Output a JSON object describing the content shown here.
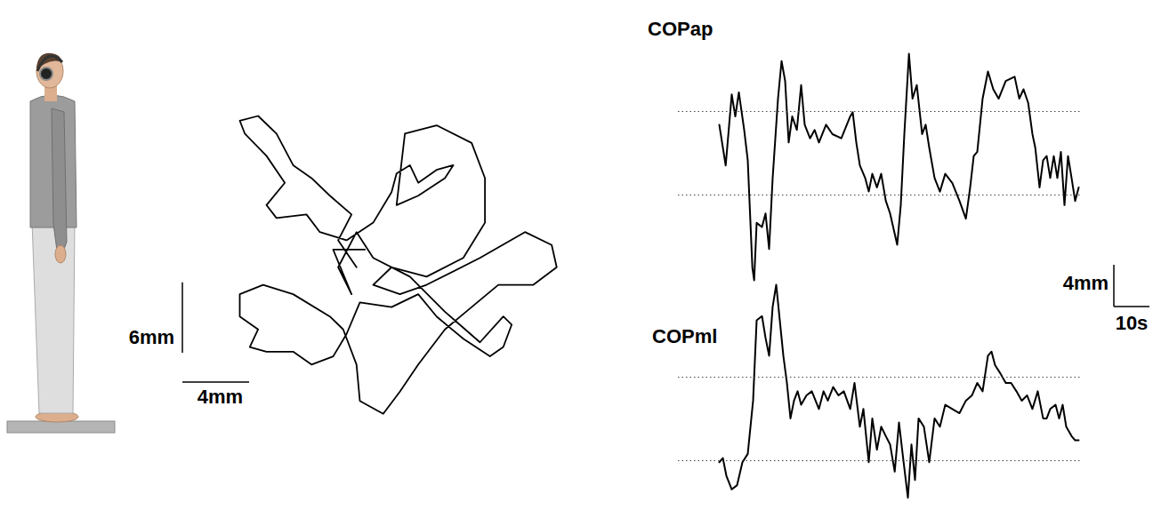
{
  "chart_data": [
    {
      "type": "path",
      "color": "#000000",
      "tick_labels": false,
      "x": [
        -2.1,
        -3.2,
        -2.4,
        -3.7,
        -4.8,
        -5.9,
        -6.9,
        -8.0,
        -9.1,
        -8.8,
        -7.5,
        -6.4,
        -7.5,
        -6.9,
        -5.1,
        -4.3,
        -2.7,
        -1.1,
        0.0,
        0.3,
        1.1,
        1.6,
        2.7,
        3.7,
        3.2,
        1.6,
        0.3,
        0.8,
        2.7,
        4.8,
        5.6,
        5.6,
        4.3,
        2.1,
        0.0,
        -1.1,
        0.5,
        2.1,
        5.3,
        8.0,
        9.6,
        9.9,
        8.5,
        6.4,
        4.8,
        3.2,
        1.6,
        0.5,
        -0.5,
        -1.9,
        -2.1,
        -2.9,
        -3.7,
        -5.9,
        -7.7,
        -9.1,
        -9.1,
        -8.0,
        -8.5,
        -7.5,
        -5.9,
        -4.8,
        -3.5,
        -2.7,
        -1.9,
        0.0,
        1.6,
        2.7,
        4.3,
        5.9,
        6.7,
        7.2,
        6.7,
        5.3,
        3.2,
        1.1,
        -1.1,
        -2.1,
        -3.2,
        -2.4,
        -3.5,
        -1.6
      ],
      "y": [
        0.0,
        2.3,
        4.5,
        6.1,
        7.6,
        8.7,
        11.4,
        12.9,
        12.5,
        11.4,
        9.5,
        7.2,
        5.3,
        4.2,
        4.5,
        3.0,
        2.3,
        3.8,
        6.4,
        8.0,
        8.7,
        7.2,
        8.3,
        8.7,
        7.6,
        6.1,
        5.3,
        11.4,
        12.1,
        10.6,
        7.6,
        3.8,
        0.8,
        -0.8,
        0.0,
        -1.5,
        -2.3,
        -1.5,
        0.8,
        3.0,
        1.9,
        0.0,
        -1.5,
        -1.5,
        -3.4,
        -5.3,
        -8.3,
        -10.6,
        -12.5,
        -11.4,
        -8.3,
        -5.3,
        -4.2,
        -2.3,
        -1.5,
        -2.3,
        -4.2,
        -5.3,
        -6.8,
        -7.2,
        -7.2,
        -8.3,
        -7.6,
        -5.7,
        -3.0,
        -3.4,
        -2.3,
        -4.2,
        -6.1,
        -7.6,
        -6.8,
        -4.9,
        -4.2,
        -6.4,
        -3.8,
        -0.8,
        0.8,
        3.0,
        0.0,
        -2.3,
        1.5,
        1.5
      ],
      "scale_bars": [
        {
          "axis": "y",
          "value": 6,
          "label": "6mm"
        },
        {
          "axis": "x",
          "value": 4,
          "label": "4mm"
        }
      ]
    },
    {
      "type": "line",
      "title": "COPap",
      "color": "#000000",
      "tick_labels": false,
      "x": [
        0,
        1.8,
        3.5,
        4.5,
        5.5,
        7,
        8,
        9.3,
        9.8,
        10.5,
        12,
        13,
        14,
        15,
        16.5,
        17.5,
        18.5,
        19.5,
        20.5,
        21.8,
        23,
        24,
        25.5,
        26.8,
        28,
        30,
        31.8,
        34.3,
        36.8,
        37.5,
        38.5,
        39.5,
        41,
        42,
        43,
        44.3,
        45.5,
        46.8,
        48,
        50,
        51,
        52,
        53.3,
        54.3,
        55.5,
        57,
        58,
        59,
        60.5,
        62,
        63.5,
        65.5,
        67.5,
        69.3,
        70.5,
        71.5,
        72.5,
        74,
        75.5,
        77,
        78.5,
        80.5,
        83,
        84.3,
        85.5,
        86.8,
        88,
        88.8,
        90,
        91,
        92,
        93,
        94,
        95,
        96,
        97,
        98,
        99,
        100,
        101
      ],
      "values": [
        2.8,
        -1.1,
        5.7,
        3.6,
        5.9,
        2.3,
        -0.6,
        -10.9,
        -12.1,
        -6.6,
        -7,
        -5.7,
        -9.1,
        -2.3,
        5.3,
        8.9,
        7,
        1.1,
        3.6,
        2.3,
        6.6,
        2.8,
        1.5,
        2.3,
        1.1,
        2.8,
        1.9,
        1.5,
        3.6,
        4,
        1.1,
        -1.1,
        -2.3,
        -3.6,
        -1.9,
        -3.2,
        -1.9,
        -4.5,
        -5.7,
        -8.7,
        -4.9,
        1.9,
        9.6,
        5.3,
        6.6,
        1.9,
        2.8,
        0.6,
        -2.3,
        -3.6,
        -1.9,
        -2.8,
        -4.5,
        -6.2,
        -3.2,
        -0.2,
        0.2,
        5.3,
        7.9,
        6.2,
        5.3,
        7,
        7.4,
        5.3,
        6.2,
        4.9,
        1.9,
        0.6,
        -3.2,
        -0.6,
        -0.2,
        -2.3,
        -0.2,
        -2.3,
        0.2,
        -4.9,
        -0.2,
        -2.3,
        -4.5,
        -3.2
      ],
      "reference_lines": [
        -4,
        4
      ],
      "scale_bars": [
        {
          "axis": "y",
          "value": 4,
          "label": "4mm"
        },
        {
          "axis": "x",
          "value": 10,
          "label": "10s"
        }
      ]
    },
    {
      "type": "line",
      "title": "COPml",
      "color": "#000000",
      "tick_labels": false,
      "x": [
        0,
        1,
        2,
        3.5,
        5,
        6.5,
        8,
        9.5,
        10.5,
        12,
        13,
        14,
        15,
        16,
        17,
        18,
        19,
        20,
        21,
        22,
        23,
        24.5,
        26,
        28,
        29.3,
        30.5,
        32,
        33.5,
        35,
        36.8,
        38,
        39.5,
        40.5,
        42,
        43,
        44.3,
        45.5,
        46.8,
        48,
        49.3,
        50.5,
        51.8,
        53,
        54,
        55,
        56,
        57.5,
        59,
        60.5,
        62,
        63.5,
        65.5,
        67.5,
        69.3,
        71,
        72.5,
        74,
        75.5,
        76.5,
        77.5,
        79,
        80.5,
        82,
        83.5,
        85,
        86.5,
        88,
        89.5,
        91,
        92,
        93,
        94.5,
        95.5,
        96.5,
        97.5,
        99,
        100,
        101
      ],
      "values": [
        -4.1,
        -3.7,
        -5.4,
        -6.7,
        -6.3,
        -4.1,
        -3.3,
        1.8,
        9.5,
        9.9,
        7.8,
        6.1,
        10.8,
        12.9,
        9.5,
        6.1,
        3.5,
        0.1,
        1.8,
        2.7,
        1.4,
        2.3,
        2.7,
        1.0,
        2.7,
        1.8,
        3.1,
        2.3,
        2.7,
        1.0,
        3.5,
        -0.7,
        1.0,
        -4.1,
        0.1,
        -2.9,
        -0.7,
        -1.6,
        -2.4,
        -5.0,
        -0.3,
        -4.1,
        -7.5,
        -2.4,
        -5.8,
        0.1,
        -0.7,
        -4.1,
        0.1,
        -0.7,
        1.4,
        1.0,
        0.6,
        1.8,
        2.3,
        3.5,
        2.7,
        6.1,
        6.5,
        5.2,
        4.4,
        3.5,
        3.5,
        2.7,
        1.8,
        2.3,
        1.0,
        2.7,
        0.1,
        0.1,
        1.0,
        1.4,
        0.1,
        1.4,
        -0.7,
        -1.6,
        -2.0,
        -2.0
      ],
      "reference_lines": [
        -4,
        4
      ]
    }
  ]
}
